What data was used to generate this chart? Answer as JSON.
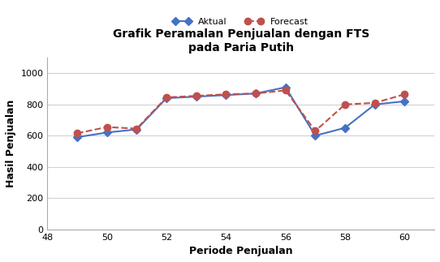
{
  "title": "Grafik Peramalan Penjualan dengan FTS\npada Paria Putih",
  "xlabel": "Periode Penjualan",
  "ylabel": "Hasil Penjualan",
  "aktual_x": [
    49,
    50,
    51,
    52,
    53,
    54,
    55,
    56,
    57,
    58,
    59,
    60
  ],
  "aktual_y": [
    590,
    620,
    640,
    840,
    850,
    860,
    870,
    910,
    600,
    650,
    800,
    820
  ],
  "forecast_x": [
    49,
    50,
    51,
    52,
    53,
    54,
    55,
    56,
    57,
    58,
    59,
    60
  ],
  "forecast_y": [
    615,
    655,
    645,
    845,
    855,
    865,
    870,
    890,
    630,
    800,
    810,
    865
  ],
  "aktual_color": "#4472C4",
  "forecast_color": "#C0504D",
  "xlim": [
    48,
    61
  ],
  "ylim": [
    0,
    1100
  ],
  "yticks": [
    0,
    200,
    400,
    600,
    800,
    1000
  ],
  "xticks": [
    48,
    50,
    52,
    54,
    56,
    58,
    60
  ],
  "xtick_labels": [
    "48",
    "50",
    "52",
    "54",
    "56",
    "58",
    "60"
  ],
  "title_fontsize": 10,
  "label_fontsize": 9,
  "tick_fontsize": 8,
  "legend_fontsize": 8,
  "background_color": "#ffffff",
  "grid_color": "#d0d0d0",
  "spine_color": "#aaaaaa"
}
